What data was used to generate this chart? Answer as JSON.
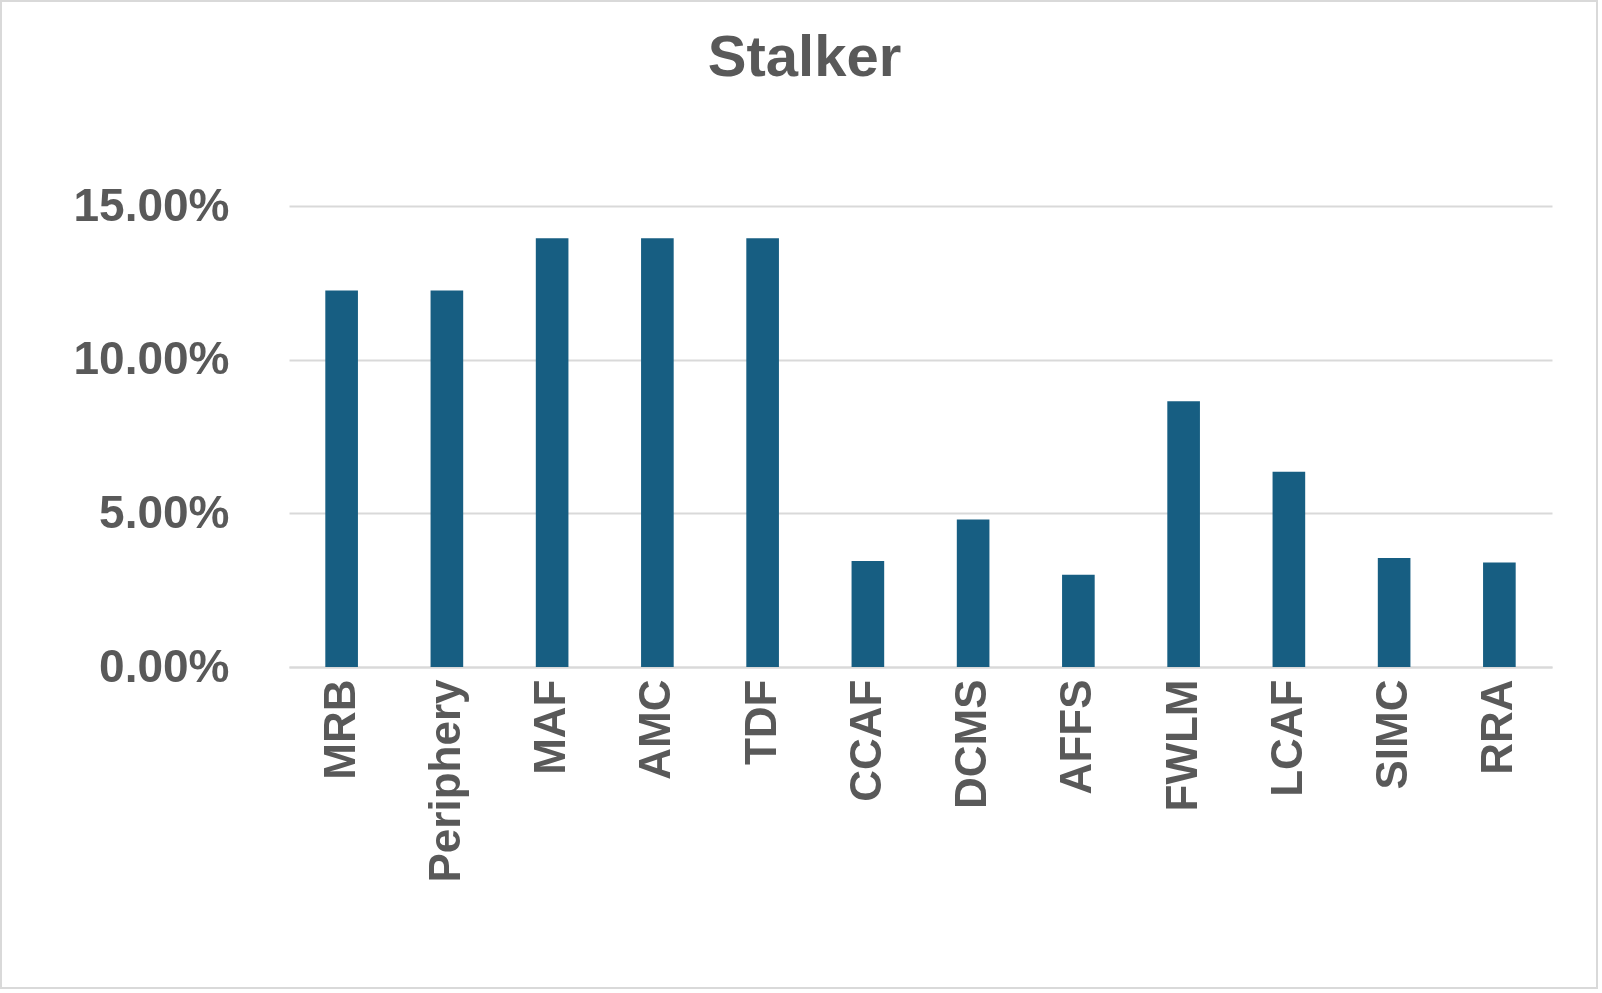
{
  "chart_data": {
    "type": "bar",
    "title": "Stalker",
    "categories": [
      "MRB",
      "Periphery",
      "MAF",
      "AMC",
      "TDF",
      "CCAF",
      "DCMS",
      "AFFS",
      "FWLM",
      "LCAF",
      "SIMC",
      "RRA"
    ],
    "values": [
      12.25,
      12.25,
      13.95,
      13.95,
      13.95,
      3.45,
      4.8,
      3.0,
      8.65,
      6.35,
      3.55,
      3.4
    ],
    "color": "#175e82",
    "ylim": [
      0,
      15
    ],
    "yticks": [
      {
        "value": 0,
        "label": "0.00%"
      },
      {
        "value": 5,
        "label": "5.00%"
      },
      {
        "value": 10,
        "label": "10.00%"
      },
      {
        "value": 15,
        "label": "15.00%"
      }
    ],
    "grid": "y"
  }
}
